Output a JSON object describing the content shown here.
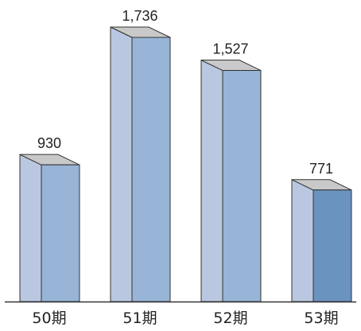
{
  "chart_data": {
    "type": "bar",
    "title": "",
    "xlabel": "",
    "ylabel": "",
    "categories": [
      "50期",
      "51期",
      "52期",
      "53期"
    ],
    "values": [
      930,
      1736,
      1527,
      771
    ],
    "value_labels": [
      "930",
      "1,736",
      "1,527",
      "771"
    ],
    "ylim": [
      0,
      1736
    ],
    "grid": false,
    "legend": "none",
    "colors": {
      "side": "#b9c8e0",
      "top": "#c9c9c9",
      "front": "#98b4d6",
      "front_highlight": "#6b93c0",
      "edge": "#333333",
      "axis": "#333333"
    },
    "highlight_index": 3
  }
}
